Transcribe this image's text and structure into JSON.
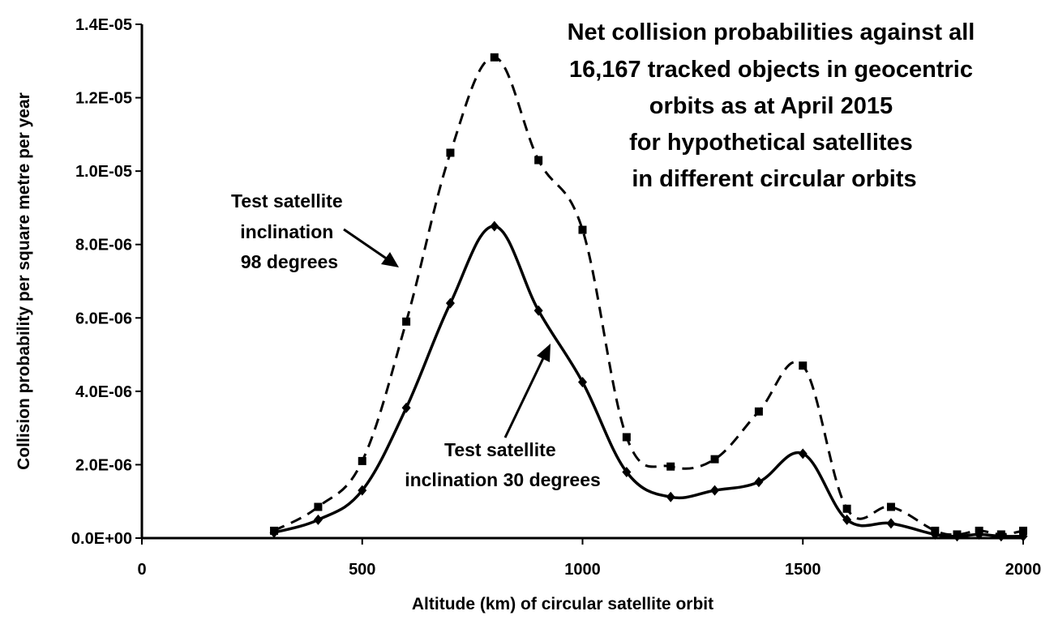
{
  "chart_data": {
    "type": "line",
    "title_lines": [
      "Net collision probabilities against all",
      "16,167 tracked objects in geocentric",
      "orbits as at April 2015",
      "for hypothetical satellites",
      "in different circular orbits"
    ],
    "xlabel": "Altitude (km) of circular satellite orbit",
    "ylabel": "Collision probability per square metre per year",
    "xlim": [
      0,
      2000
    ],
    "ylim": [
      0,
      1.4e-05
    ],
    "x_ticks": [
      {
        "value": 0,
        "label": "0"
      },
      {
        "value": 500,
        "label": "500"
      },
      {
        "value": 1000,
        "label": "1000"
      },
      {
        "value": 1500,
        "label": "1500"
      },
      {
        "value": 2000,
        "label": "2000"
      }
    ],
    "y_ticks": [
      {
        "value": 0,
        "label": "0.0E+00"
      },
      {
        "value": 2e-06,
        "label": "2.0E-06"
      },
      {
        "value": 4e-06,
        "label": "4.0E-06"
      },
      {
        "value": 6e-06,
        "label": "6.0E-06"
      },
      {
        "value": 8e-06,
        "label": "8.0E-06"
      },
      {
        "value": 1e-05,
        "label": "1.0E-05"
      },
      {
        "value": 1.2e-05,
        "label": "1.2E-05"
      },
      {
        "value": 1.4e-05,
        "label": "1.4E-05"
      }
    ],
    "grid": false,
    "legend": "none",
    "series": [
      {
        "style": "dashed",
        "marker": "square",
        "color": "#000000",
        "annotation_lines": [
          "Test satellite",
          "inclination",
          "98 degrees"
        ],
        "points": [
          [
            300,
            2e-07
          ],
          [
            400,
            8.5e-07
          ],
          [
            500,
            2.1e-06
          ],
          [
            600,
            5.9e-06
          ],
          [
            700,
            1.05e-05
          ],
          [
            800,
            1.31e-05
          ],
          [
            900,
            1.03e-05
          ],
          [
            1000,
            8.4e-06
          ],
          [
            1100,
            2.75e-06
          ],
          [
            1200,
            1.95e-06
          ],
          [
            1300,
            2.15e-06
          ],
          [
            1400,
            3.45e-06
          ],
          [
            1500,
            4.7e-06
          ],
          [
            1600,
            8e-07
          ],
          [
            1700,
            8.5e-07
          ],
          [
            1800,
            2e-07
          ],
          [
            1850,
            1e-07
          ],
          [
            1900,
            2e-07
          ],
          [
            1950,
            1e-07
          ],
          [
            2000,
            2e-07
          ]
        ]
      },
      {
        "style": "solid",
        "marker": "diamond",
        "color": "#000000",
        "annotation_lines": [
          "Test satellite",
          "inclination 30 degrees"
        ],
        "points": [
          [
            300,
            1.5e-07
          ],
          [
            400,
            5e-07
          ],
          [
            500,
            1.3e-06
          ],
          [
            600,
            3.55e-06
          ],
          [
            700,
            6.4e-06
          ],
          [
            800,
            8.5e-06
          ],
          [
            900,
            6.2e-06
          ],
          [
            1000,
            4.25e-06
          ],
          [
            1100,
            1.8e-06
          ],
          [
            1200,
            1.12e-06
          ],
          [
            1300,
            1.3e-06
          ],
          [
            1400,
            1.53e-06
          ],
          [
            1500,
            2.3e-06
          ],
          [
            1600,
            5e-07
          ],
          [
            1700,
            4e-07
          ],
          [
            1800,
            1e-07
          ],
          [
            1850,
            5e-08
          ],
          [
            1900,
            1e-07
          ],
          [
            1950,
            5e-08
          ],
          [
            2000,
            5e-08
          ]
        ]
      }
    ]
  }
}
